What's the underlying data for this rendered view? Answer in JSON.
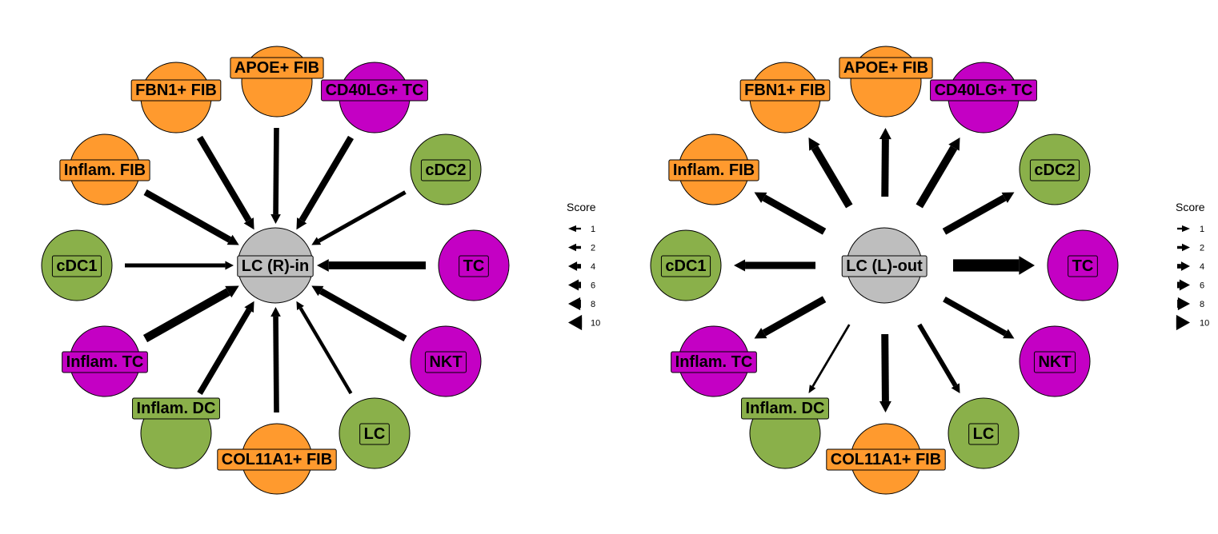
{
  "colors": {
    "FIB": "#FF9A2E",
    "TC": "#C400C4",
    "DC": "#8AB04A",
    "center": "#BEBEBE",
    "arrow": "#000000",
    "outline": "#000000"
  },
  "panels": [
    {
      "id": "left",
      "direction": "in",
      "center_label": "LC (R)-in",
      "nodes": [
        {
          "label": "APOE+ FIB",
          "group": "FIB",
          "score": 3.5
        },
        {
          "label": "CD40LG+ TC",
          "group": "TC",
          "score": 4.5
        },
        {
          "label": "cDC2",
          "group": "DC",
          "score": 2.5
        },
        {
          "label": "TC",
          "group": "TC",
          "score": 5.5
        },
        {
          "label": "NKT",
          "group": "TC",
          "score": 4.5
        },
        {
          "label": "LC",
          "group": "DC",
          "score": 2
        },
        {
          "label": "COL11A1+ FIB",
          "group": "FIB",
          "score": 3.5
        },
        {
          "label": "Inflam. DC",
          "group": "DC",
          "score": 4
        },
        {
          "label": "Inflam. TC",
          "group": "TC",
          "score": 6
        },
        {
          "label": "cDC1",
          "group": "DC",
          "score": 2.5
        },
        {
          "label": "Inflam. FIB",
          "group": "FIB",
          "score": 4.5
        },
        {
          "label": "FBN1+ FIB",
          "group": "FIB",
          "score": 4.5
        }
      ]
    },
    {
      "id": "right",
      "direction": "out",
      "center_label": "LC (L)-out",
      "nodes": [
        {
          "label": "APOE+ FIB",
          "group": "FIB",
          "score": 5
        },
        {
          "label": "CD40LG+ TC",
          "group": "TC",
          "score": 5.5
        },
        {
          "label": "cDC2",
          "group": "DC",
          "score": 5
        },
        {
          "label": "TC",
          "group": "TC",
          "score": 9
        },
        {
          "label": "NKT",
          "group": "TC",
          "score": 4
        },
        {
          "label": "LC",
          "group": "DC",
          "score": 3
        },
        {
          "label": "COL11A1+ FIB",
          "group": "FIB",
          "score": 5
        },
        {
          "label": "Inflam. DC",
          "group": "DC",
          "score": 1
        },
        {
          "label": "Inflam. TC",
          "group": "TC",
          "score": 5
        },
        {
          "label": "cDC1",
          "group": "DC",
          "score": 5
        },
        {
          "label": "Inflam. FIB",
          "group": "FIB",
          "score": 5
        },
        {
          "label": "FBN1+ FIB",
          "group": "FIB",
          "score": 5.5
        }
      ]
    }
  ],
  "legends": [
    {
      "panel": "left",
      "title": "Score",
      "direction": "in",
      "ticks": [
        "1",
        "2",
        "4",
        "6",
        "8",
        "10"
      ]
    },
    {
      "panel": "right",
      "title": "Score",
      "direction": "out",
      "ticks": [
        "1",
        "2",
        "4",
        "6",
        "8",
        "10"
      ]
    }
  ]
}
